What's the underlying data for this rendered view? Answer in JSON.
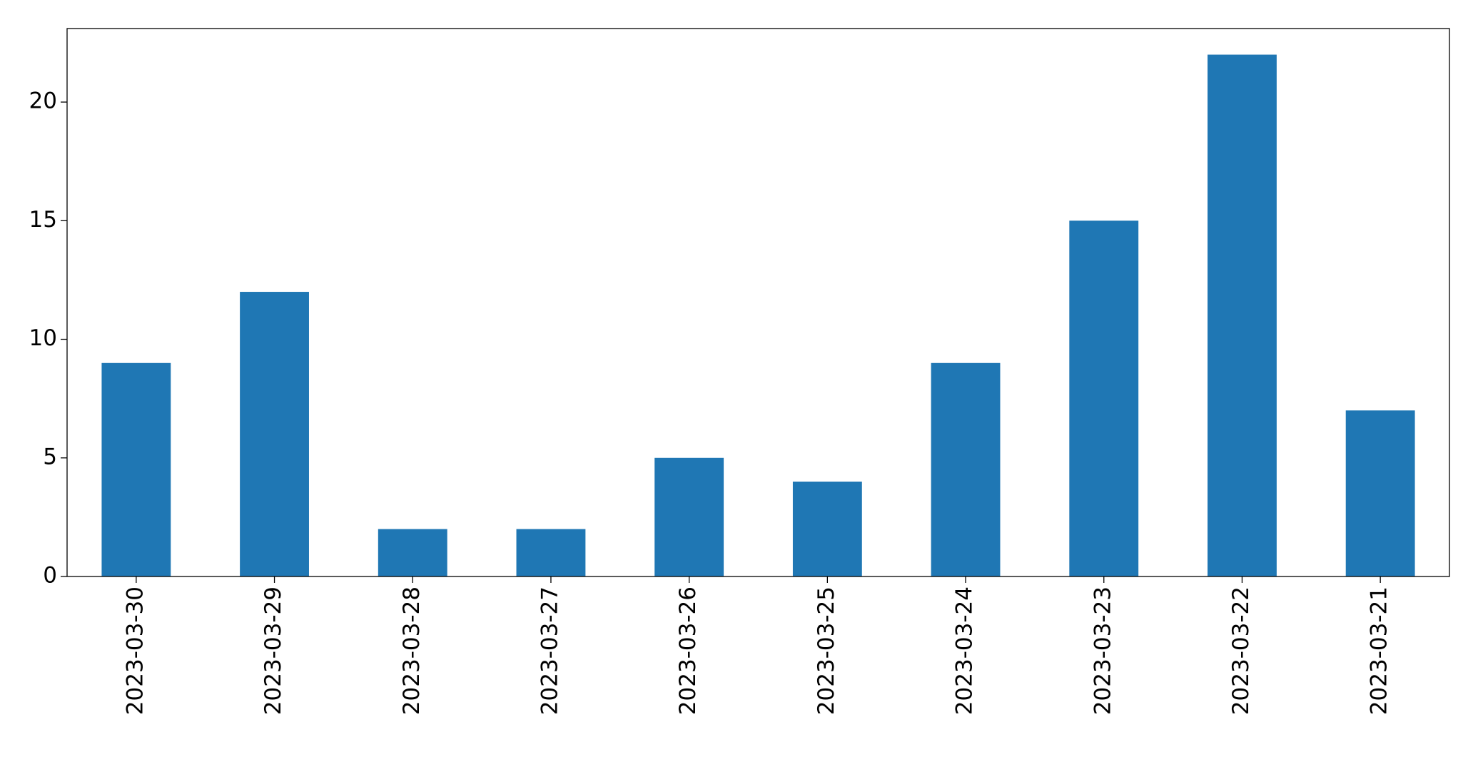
{
  "chart_data": {
    "type": "bar",
    "categories": [
      "2023-03-30",
      "2023-03-29",
      "2023-03-28",
      "2023-03-27",
      "2023-03-26",
      "2023-03-25",
      "2023-03-24",
      "2023-03-23",
      "2023-03-22",
      "2023-03-21"
    ],
    "values": [
      9,
      12,
      2,
      2,
      5,
      4,
      9,
      15,
      22,
      7
    ],
    "color": "#1f77b4",
    "ylim": [
      0,
      23.1
    ],
    "yticks": [
      0,
      5,
      10,
      15,
      20
    ],
    "grid": false
  }
}
